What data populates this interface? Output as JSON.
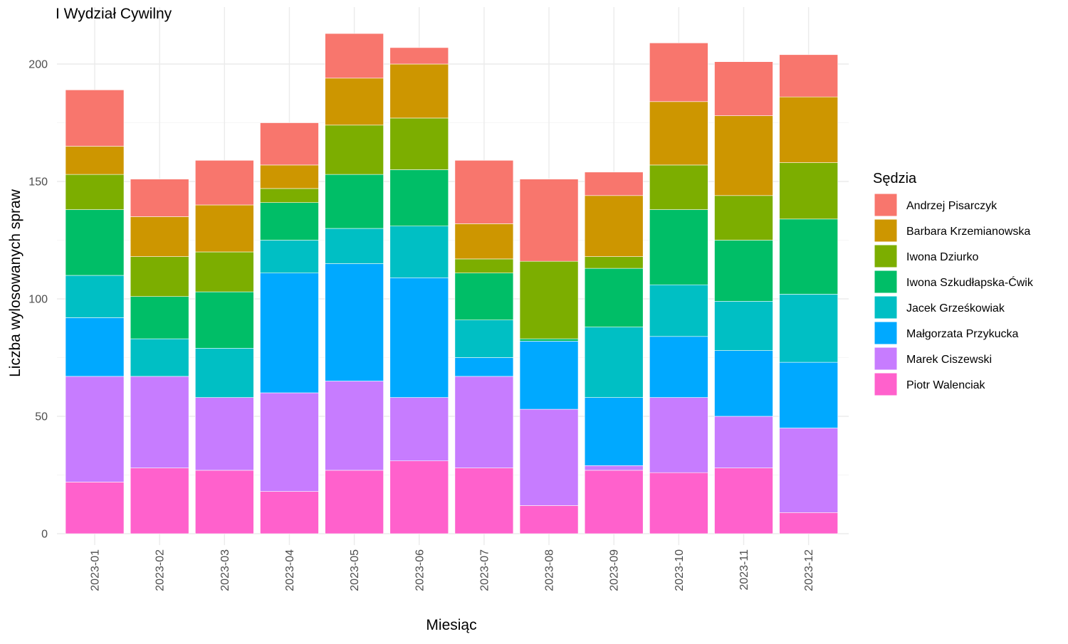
{
  "chart_data": {
    "type": "bar",
    "stacked": true,
    "title": "I Wydział Cywilny",
    "xlabel": "Miesiąc",
    "ylabel": "Liczba wylosowanych spraw",
    "ylim": [
      0,
      220
    ],
    "yticks": [
      0,
      50,
      100,
      150,
      200
    ],
    "grid": true,
    "legend": {
      "title": "Sędzia",
      "placement": "right"
    },
    "categories": [
      "2023-01",
      "2023-02",
      "2023-03",
      "2023-04",
      "2023-05",
      "2023-06",
      "2023-07",
      "2023-08",
      "2023-09",
      "2023-10",
      "2023-11",
      "2023-12"
    ],
    "series": [
      {
        "name": "Andrzej Pisarczyk",
        "color": "#F8766D",
        "values": [
          24,
          16,
          19,
          18,
          19,
          7,
          27,
          35,
          10,
          25,
          23,
          18
        ]
      },
      {
        "name": "Barbara Krzemianowska",
        "color": "#CD9600",
        "values": [
          12,
          17,
          20,
          10,
          20,
          23,
          15,
          0,
          26,
          27,
          34,
          28
        ]
      },
      {
        "name": "Iwona Dziurko",
        "color": "#7CAE00",
        "values": [
          15,
          17,
          17,
          6,
          21,
          22,
          6,
          33,
          5,
          19,
          19,
          24
        ]
      },
      {
        "name": "Iwona Szkudłapska-Ćwik",
        "color": "#00BE67",
        "values": [
          28,
          18,
          24,
          16,
          23,
          24,
          20,
          1,
          25,
          32,
          26,
          32
        ]
      },
      {
        "name": "Jacek Grześkowiak",
        "color": "#00BFC4",
        "values": [
          18,
          16,
          21,
          14,
          15,
          22,
          16,
          0,
          30,
          22,
          21,
          29
        ]
      },
      {
        "name": "Małgorzata Przykucka",
        "color": "#00A9FF",
        "values": [
          25,
          0,
          0,
          51,
          50,
          51,
          8,
          29,
          29,
          26,
          28,
          28
        ]
      },
      {
        "name": "Marek Ciszewski",
        "color": "#C77CFF",
        "values": [
          45,
          39,
          31,
          42,
          38,
          27,
          39,
          41,
          2,
          32,
          22,
          36
        ]
      },
      {
        "name": "Piotr Walenciak",
        "color": "#FF61CC",
        "values": [
          22,
          28,
          27,
          18,
          27,
          31,
          28,
          12,
          27,
          26,
          28,
          9
        ]
      }
    ]
  }
}
